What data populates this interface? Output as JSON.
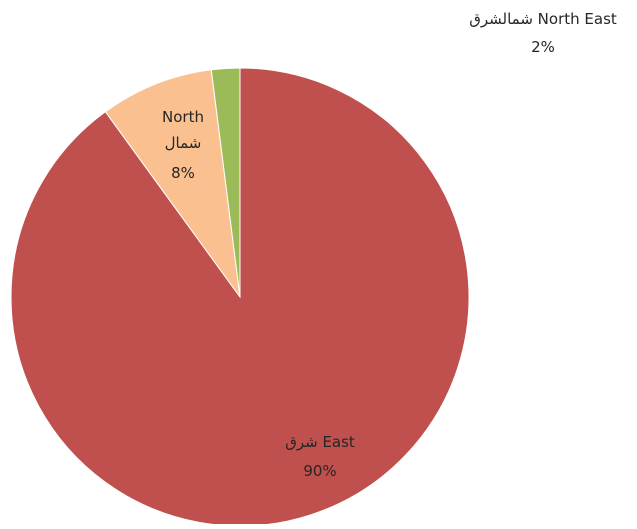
{
  "chart_data": {
    "type": "pie",
    "title": "",
    "start_angle_deg": 0,
    "direction": "clockwise",
    "legend": "none",
    "slices": [
      {
        "label_en": "East",
        "label_ar": "شرق",
        "value": 90,
        "pct_label": "90%",
        "color": "#C0504D"
      },
      {
        "label_en": "North",
        "label_ar": "شمال",
        "value": 8,
        "pct_label": "8%",
        "color": "#FAC090"
      },
      {
        "label_en": "North East",
        "label_ar": "شمالشرق",
        "value": 2,
        "pct_label": "2%",
        "color": "#9BBB59"
      }
    ]
  }
}
